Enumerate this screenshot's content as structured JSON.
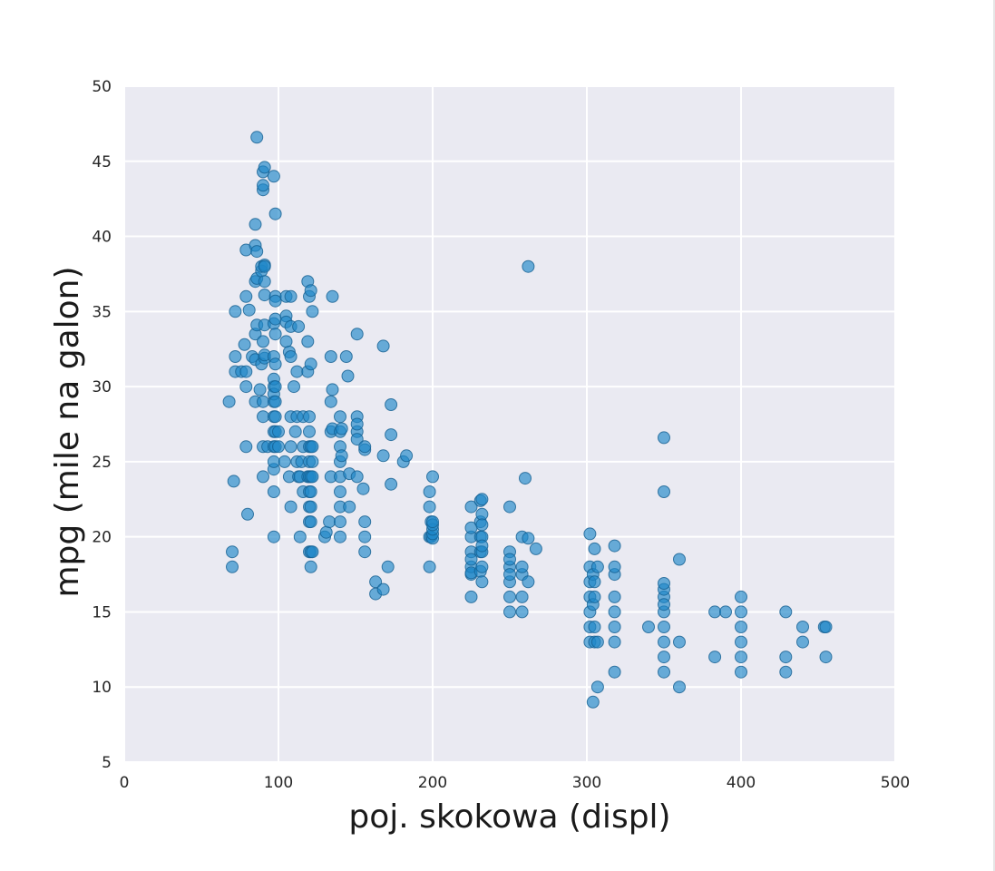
{
  "chart_data": {
    "type": "scatter",
    "title": "",
    "xlabel": "poj. skokowa (displ)",
    "ylabel": "mpg (mile na galon)",
    "xlim": [
      0,
      500
    ],
    "ylim": [
      5,
      50
    ],
    "xticks": [
      0,
      100,
      200,
      300,
      400,
      500
    ],
    "yticks": [
      5,
      10,
      15,
      20,
      25,
      30,
      35,
      40,
      45,
      50
    ],
    "grid": true,
    "marker_color": "#1f87c8",
    "background_color": "#eaeaf2",
    "points": [
      [
        68,
        29
      ],
      [
        70,
        18
      ],
      [
        70,
        19
      ],
      [
        71,
        23.7
      ],
      [
        72,
        31
      ],
      [
        72,
        32
      ],
      [
        72,
        35
      ],
      [
        76,
        31
      ],
      [
        78,
        32.8
      ],
      [
        79,
        26
      ],
      [
        79,
        30
      ],
      [
        79,
        31
      ],
      [
        79,
        36
      ],
      [
        79,
        39.1
      ],
      [
        80,
        21.5
      ],
      [
        81,
        35.1
      ],
      [
        83,
        32
      ],
      [
        85,
        29
      ],
      [
        85,
        31.8
      ],
      [
        85,
        33.5
      ],
      [
        85,
        37
      ],
      [
        85,
        39.4
      ],
      [
        85,
        40.8
      ],
      [
        86,
        46.6
      ],
      [
        86,
        34.1
      ],
      [
        86,
        37.2
      ],
      [
        86,
        39
      ],
      [
        88,
        29.8
      ],
      [
        89,
        31.5
      ],
      [
        89,
        37.7
      ],
      [
        89,
        38
      ],
      [
        90,
        24
      ],
      [
        90,
        26
      ],
      [
        90,
        28
      ],
      [
        90,
        29
      ],
      [
        90,
        33
      ],
      [
        90,
        43.1
      ],
      [
        90,
        43.4
      ],
      [
        90,
        44.3
      ],
      [
        91,
        44.6
      ],
      [
        91,
        36.1
      ],
      [
        91,
        38.1
      ],
      [
        91,
        31.9
      ],
      [
        91,
        37
      ],
      [
        91,
        34.1
      ],
      [
        91,
        32.1
      ],
      [
        91,
        38
      ],
      [
        93,
        26
      ],
      [
        97,
        23
      ],
      [
        97,
        26
      ],
      [
        97,
        27
      ],
      [
        97,
        28
      ],
      [
        97,
        29
      ],
      [
        97,
        30
      ],
      [
        97,
        32
      ],
      [
        97,
        34.2
      ],
      [
        97,
        44
      ],
      [
        97,
        20
      ],
      [
        97,
        24.5
      ],
      [
        97,
        25
      ],
      [
        97,
        30.5
      ],
      [
        97,
        29.5
      ],
      [
        98,
        26
      ],
      [
        98,
        29
      ],
      [
        98,
        30
      ],
      [
        98,
        31.5
      ],
      [
        98,
        33.5
      ],
      [
        98,
        34.5
      ],
      [
        98,
        36
      ],
      [
        98,
        41.5
      ],
      [
        98,
        27
      ],
      [
        98,
        28
      ],
      [
        98,
        35.7
      ],
      [
        100,
        27
      ],
      [
        100,
        26
      ],
      [
        104,
        25
      ],
      [
        105,
        34.7
      ],
      [
        105,
        36
      ],
      [
        105,
        34.3
      ],
      [
        105,
        33
      ],
      [
        107,
        24
      ],
      [
        107,
        32.3
      ],
      [
        108,
        22
      ],
      [
        108,
        26
      ],
      [
        108,
        28
      ],
      [
        108,
        32
      ],
      [
        108,
        36
      ],
      [
        108,
        34
      ],
      [
        110,
        30
      ],
      [
        111,
        27
      ],
      [
        112,
        31
      ],
      [
        112,
        25
      ],
      [
        112,
        28
      ],
      [
        113,
        24
      ],
      [
        113,
        34
      ],
      [
        114,
        20
      ],
      [
        114,
        24
      ],
      [
        115,
        25
      ],
      [
        116,
        23
      ],
      [
        116,
        26
      ],
      [
        116,
        28
      ],
      [
        119,
        33
      ],
      [
        119,
        31
      ],
      [
        119,
        24
      ],
      [
        119,
        37
      ],
      [
        120,
        19
      ],
      [
        120,
        21
      ],
      [
        120,
        22
      ],
      [
        120,
        23
      ],
      [
        120,
        24
      ],
      [
        120,
        25
      ],
      [
        120,
        26
      ],
      [
        120,
        27
      ],
      [
        120,
        28
      ],
      [
        120,
        36
      ],
      [
        121,
        18
      ],
      [
        121,
        19
      ],
      [
        121,
        21
      ],
      [
        121,
        22
      ],
      [
        121,
        23
      ],
      [
        121,
        24
      ],
      [
        121,
        26
      ],
      [
        121,
        31.5
      ],
      [
        121,
        36.4
      ],
      [
        122,
        19
      ],
      [
        122,
        24
      ],
      [
        122,
        25
      ],
      [
        122,
        26
      ],
      [
        122,
        35
      ],
      [
        130,
        20
      ],
      [
        131,
        20.3
      ],
      [
        133,
        21
      ],
      [
        134,
        24
      ],
      [
        134,
        27
      ],
      [
        134,
        29
      ],
      [
        134,
        32
      ],
      [
        135,
        27.2
      ],
      [
        135,
        29.8
      ],
      [
        135,
        36
      ],
      [
        140,
        20
      ],
      [
        140,
        21
      ],
      [
        140,
        22
      ],
      [
        140,
        23
      ],
      [
        140,
        24
      ],
      [
        140,
        25
      ],
      [
        140,
        26
      ],
      [
        140,
        27
      ],
      [
        140,
        28
      ],
      [
        141,
        25.4
      ],
      [
        141,
        27.2
      ],
      [
        144,
        32
      ],
      [
        145,
        30.7
      ],
      [
        146,
        24.2
      ],
      [
        146,
        22
      ],
      [
        151,
        24
      ],
      [
        151,
        27
      ],
      [
        151,
        28
      ],
      [
        151,
        26.5
      ],
      [
        151,
        27.5
      ],
      [
        151,
        33.5
      ],
      [
        155,
        23.2
      ],
      [
        156,
        20
      ],
      [
        156,
        21
      ],
      [
        156,
        19
      ],
      [
        156,
        25.8
      ],
      [
        156,
        26
      ],
      [
        163,
        17
      ],
      [
        163,
        16.2
      ],
      [
        168,
        16.5
      ],
      [
        168,
        25.4
      ],
      [
        168,
        32.7
      ],
      [
        171,
        18
      ],
      [
        173,
        23.5
      ],
      [
        173,
        26.8
      ],
      [
        173,
        28.8
      ],
      [
        181,
        25
      ],
      [
        183,
        25.4
      ],
      [
        198,
        20
      ],
      [
        198,
        22
      ],
      [
        198,
        18
      ],
      [
        198,
        23
      ],
      [
        199,
        20
      ],
      [
        199,
        21
      ],
      [
        200,
        19.9
      ],
      [
        200,
        20.2
      ],
      [
        200,
        20.5
      ],
      [
        200,
        20.8
      ],
      [
        200,
        21
      ],
      [
        200,
        24
      ],
      [
        225,
        16
      ],
      [
        225,
        17.5
      ],
      [
        225,
        18
      ],
      [
        225,
        19
      ],
      [
        225,
        20
      ],
      [
        225,
        22
      ],
      [
        225,
        17.6
      ],
      [
        225,
        18.5
      ],
      [
        225,
        20.6
      ],
      [
        231,
        17.7
      ],
      [
        231,
        19
      ],
      [
        231,
        20
      ],
      [
        231,
        21
      ],
      [
        231,
        22.4
      ],
      [
        232,
        18
      ],
      [
        232,
        19
      ],
      [
        232,
        20
      ],
      [
        232,
        21.5
      ],
      [
        232,
        22.5
      ],
      [
        232,
        17
      ],
      [
        232,
        19.4
      ],
      [
        232,
        20.8
      ],
      [
        250,
        15
      ],
      [
        250,
        16
      ],
      [
        250,
        17
      ],
      [
        250,
        18
      ],
      [
        250,
        19
      ],
      [
        250,
        22
      ],
      [
        250,
        17.5
      ],
      [
        250,
        18.5
      ],
      [
        258,
        15
      ],
      [
        258,
        16
      ],
      [
        258,
        17.5
      ],
      [
        258,
        18
      ],
      [
        258,
        20
      ],
      [
        260,
        23.9
      ],
      [
        262,
        17
      ],
      [
        262,
        19.9
      ],
      [
        262,
        38
      ],
      [
        267,
        19.2
      ],
      [
        302,
        13
      ],
      [
        302,
        14
      ],
      [
        302,
        15
      ],
      [
        302,
        16
      ],
      [
        302,
        17
      ],
      [
        302,
        18
      ],
      [
        302,
        20.2
      ],
      [
        304,
        9
      ],
      [
        304,
        15.5
      ],
      [
        304,
        17.5
      ],
      [
        305,
        13
      ],
      [
        305,
        14
      ],
      [
        305,
        16
      ],
      [
        305,
        17
      ],
      [
        305,
        19.2
      ],
      [
        307,
        10
      ],
      [
        307,
        13
      ],
      [
        307,
        18
      ],
      [
        318,
        11
      ],
      [
        318,
        13
      ],
      [
        318,
        14
      ],
      [
        318,
        15
      ],
      [
        318,
        16
      ],
      [
        318,
        17.5
      ],
      [
        318,
        18
      ],
      [
        318,
        19.4
      ],
      [
        340,
        14
      ],
      [
        350,
        11
      ],
      [
        350,
        12
      ],
      [
        350,
        13
      ],
      [
        350,
        14
      ],
      [
        350,
        15
      ],
      [
        350,
        16
      ],
      [
        350,
        16.5
      ],
      [
        350,
        16.9
      ],
      [
        350,
        15.5
      ],
      [
        350,
        23
      ],
      [
        350,
        26.6
      ],
      [
        360,
        10
      ],
      [
        360,
        13
      ],
      [
        360,
        18.5
      ],
      [
        383,
        12
      ],
      [
        383,
        15
      ],
      [
        390,
        15
      ],
      [
        400,
        11
      ],
      [
        400,
        12
      ],
      [
        400,
        13
      ],
      [
        400,
        14
      ],
      [
        400,
        15
      ],
      [
        400,
        16
      ],
      [
        429,
        11
      ],
      [
        429,
        12
      ],
      [
        429,
        15
      ],
      [
        440,
        13
      ],
      [
        440,
        14
      ],
      [
        454,
        14
      ],
      [
        455,
        12
      ],
      [
        455,
        14
      ]
    ]
  }
}
